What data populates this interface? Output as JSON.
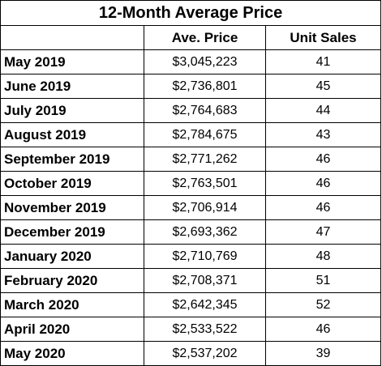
{
  "title": "12-Month Average Price",
  "headers": {
    "month": "",
    "price": "Ave. Price",
    "units": "Unit Sales"
  },
  "rows": [
    {
      "month": "May 2019",
      "price": "$3,045,223",
      "units": "41"
    },
    {
      "month": "June 2019",
      "price": "$2,736,801",
      "units": "45"
    },
    {
      "month": "July 2019",
      "price": "$2,764,683",
      "units": "44"
    },
    {
      "month": "August 2019",
      "price": "$2,784,675",
      "units": "43"
    },
    {
      "month": "September 2019",
      "price": "$2,771,262",
      "units": "46"
    },
    {
      "month": "October 2019",
      "price": "$2,763,501",
      "units": "46"
    },
    {
      "month": "November 2019",
      "price": "$2,706,914",
      "units": "46"
    },
    {
      "month": "December 2019",
      "price": "$2,693,362",
      "units": "47"
    },
    {
      "month": "January 2020",
      "price": "$2,710,769",
      "units": "48"
    },
    {
      "month": "February 2020",
      "price": "$2,708,371",
      "units": "51"
    },
    {
      "month": "March 2020",
      "price": "$2,642,345",
      "units": "52"
    },
    {
      "month": "April 2020",
      "price": "$2,533,522",
      "units": "46"
    },
    {
      "month": "May 2020",
      "price": "$2,537,202",
      "units": "39"
    }
  ]
}
